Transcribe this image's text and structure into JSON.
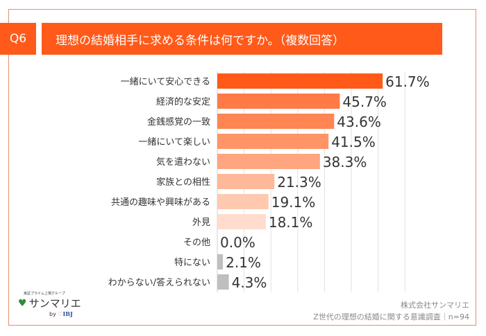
{
  "header": {
    "q": "Q6",
    "title": "理想の結婚相手に求める条件は何ですか。（複数回答）"
  },
  "chart_data": {
    "type": "bar",
    "orientation": "horizontal",
    "title": "理想の結婚相手に求める条件は何ですか。（複数回答）",
    "categories": [
      "一緒にいて安心できる",
      "経済的な安定",
      "金銭感覚の一致",
      "一緒にいて楽しい",
      "気を遣わない",
      "家族との相性",
      "共通の趣味や興味がある",
      "外見",
      "その他",
      "特にない",
      "わからない/答えられない"
    ],
    "values": [
      61.7,
      45.7,
      43.6,
      41.5,
      38.3,
      21.3,
      19.1,
      18.1,
      0.0,
      2.1,
      4.3
    ],
    "labels": [
      "61.7%",
      "45.7%",
      "43.6%",
      "41.5%",
      "38.3%",
      "21.3%",
      "19.1%",
      "18.1%",
      "0.0%",
      "2.1%",
      "4.3%"
    ],
    "colors": [
      "#ff5a1a",
      "#ff7a45",
      "#ff8552",
      "#ff9466",
      "#ffa57f",
      "#ffb899",
      "#ffc9b0",
      "#ffdccd",
      "#bfbfbf",
      "#bfbfbf",
      "#bfbfbf"
    ],
    "xlim": [
      0,
      70
    ],
    "grid": true,
    "unit": "%"
  },
  "logo": {
    "group": "東証プライム上場グループ",
    "name": "サンマリエ",
    "by": "by",
    "ibj": "IBJ"
  },
  "footer": {
    "company": "株式会社サンマリエ",
    "survey": "Z世代の理想の結婚に関する意識調査｜n=94"
  }
}
